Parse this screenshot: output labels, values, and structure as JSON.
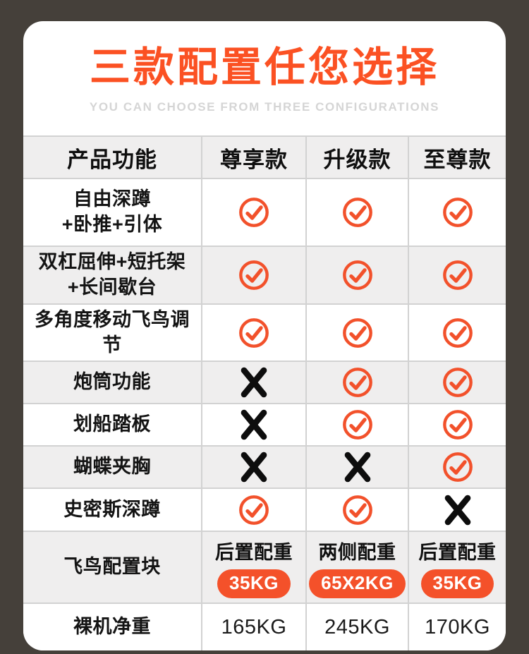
{
  "header": {
    "title": "三款配置任您选择",
    "subtitle": "YOU CAN CHOOSE FROM THREE CONFIGURATIONS"
  },
  "table": {
    "columns": [
      "产品功能",
      "尊享款",
      "升级款",
      "至尊款"
    ],
    "rows": [
      {
        "feature": [
          "自由深蹲",
          "+卧推+引体"
        ],
        "cells": [
          {
            "type": "check"
          },
          {
            "type": "check"
          },
          {
            "type": "check"
          }
        ]
      },
      {
        "feature": [
          "双杠屈伸+短托架",
          "+长间歇台"
        ],
        "cells": [
          {
            "type": "check"
          },
          {
            "type": "check"
          },
          {
            "type": "check"
          }
        ]
      },
      {
        "feature": [
          "多角度移动飞鸟调节"
        ],
        "cells": [
          {
            "type": "check"
          },
          {
            "type": "check"
          },
          {
            "type": "check"
          }
        ]
      },
      {
        "feature": [
          "炮筒功能"
        ],
        "cells": [
          {
            "type": "cross"
          },
          {
            "type": "check"
          },
          {
            "type": "check"
          }
        ]
      },
      {
        "feature": [
          "划船踏板"
        ],
        "cells": [
          {
            "type": "cross"
          },
          {
            "type": "check"
          },
          {
            "type": "check"
          }
        ]
      },
      {
        "feature": [
          "蝴蝶夹胸"
        ],
        "cells": [
          {
            "type": "cross"
          },
          {
            "type": "cross"
          },
          {
            "type": "check"
          }
        ]
      },
      {
        "feature": [
          "史密斯深蹲"
        ],
        "cells": [
          {
            "type": "check"
          },
          {
            "type": "check"
          },
          {
            "type": "cross"
          }
        ]
      },
      {
        "feature": [
          "飞鸟配置块"
        ],
        "cells": [
          {
            "type": "weight",
            "label": "后置配重",
            "badge": "35KG"
          },
          {
            "type": "weight",
            "label": "两侧配重",
            "badge": "65X2KG"
          },
          {
            "type": "weight",
            "label": "后置配重",
            "badge": "35KG"
          }
        ]
      },
      {
        "feature": [
          "裸机净重"
        ],
        "cells": [
          {
            "type": "text",
            "value": "165KG"
          },
          {
            "type": "text",
            "value": "245KG"
          },
          {
            "type": "text",
            "value": "170KG"
          }
        ]
      }
    ]
  },
  "icons": {
    "check": "check-circle-icon",
    "cross": "cross-icon"
  },
  "colors": {
    "title_orange": "#FB5123",
    "accent_orange": "#F4512A",
    "icon_orange": "#F2512B",
    "cross_black": "#0D0D0D",
    "page_bg": "#45403A",
    "row_shade": "#EFEEEE",
    "grid_line": "#D2D2D2",
    "card_bg": "#FFFFFF",
    "subtitle_gray": "#D5D5D5"
  }
}
